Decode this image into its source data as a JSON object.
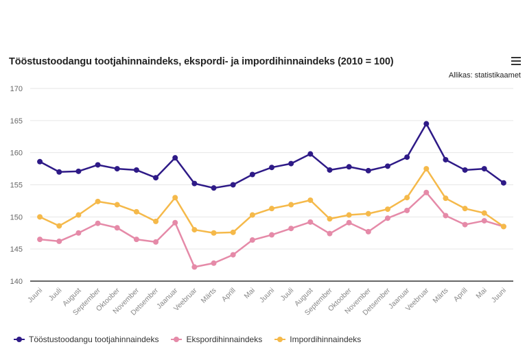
{
  "chart_data": {
    "type": "line",
    "title": "Tööstustoodangu tootjahinnaindeks, ekspordi- ja impordihinnaindeks (2010 = 100)",
    "source": "Allikas: statistikaamet",
    "xlabel": "",
    "ylabel": "",
    "ylim": [
      140,
      170
    ],
    "yticks": [
      140,
      145,
      150,
      155,
      160,
      165,
      170
    ],
    "grid": true,
    "legend_position": "bottom-left",
    "categories": [
      "Juuni",
      "Juuli",
      "August",
      "September",
      "Oktoober",
      "November",
      "Detsember",
      "Jaanuar",
      "Veebruar",
      "Märts",
      "Aprill",
      "Mai",
      "Juuni",
      "Juuli",
      "August",
      "September",
      "Oktoober",
      "November",
      "Detsember",
      "Jaanuar",
      "Veebruar",
      "Märts",
      "Aprill",
      "Mai",
      "Juuni"
    ],
    "series": [
      {
        "name": "Tööstustoodangu tootjahinnaindeks",
        "color": "#2e1a87",
        "values": [
          158.6,
          157.0,
          157.1,
          158.1,
          157.5,
          157.3,
          156.1,
          159.2,
          155.2,
          154.5,
          155.0,
          156.6,
          157.7,
          158.3,
          159.8,
          157.3,
          157.8,
          157.2,
          157.9,
          159.3,
          164.5,
          158.9,
          157.3,
          157.5,
          155.3
        ]
      },
      {
        "name": "Ekspordihinnaindeks",
        "color": "#e58aa8",
        "values": [
          146.5,
          146.2,
          147.5,
          149.0,
          148.3,
          146.5,
          146.1,
          149.1,
          142.2,
          142.8,
          144.1,
          146.4,
          147.2,
          148.2,
          149.2,
          147.4,
          149.1,
          147.7,
          149.8,
          151.0,
          153.8,
          150.2,
          148.8,
          149.4,
          148.5
        ]
      },
      {
        "name": "Impordihinnaindeks",
        "color": "#f5b94a",
        "values": [
          150.0,
          148.6,
          150.3,
          152.4,
          151.9,
          150.8,
          149.3,
          153.0,
          148.0,
          147.5,
          147.6,
          150.3,
          151.3,
          151.9,
          152.6,
          149.7,
          150.3,
          150.5,
          151.2,
          153.0,
          157.5,
          152.9,
          151.3,
          150.6,
          148.5
        ]
      }
    ]
  },
  "ui": {
    "menu_icon": "hamburger-menu-icon"
  }
}
